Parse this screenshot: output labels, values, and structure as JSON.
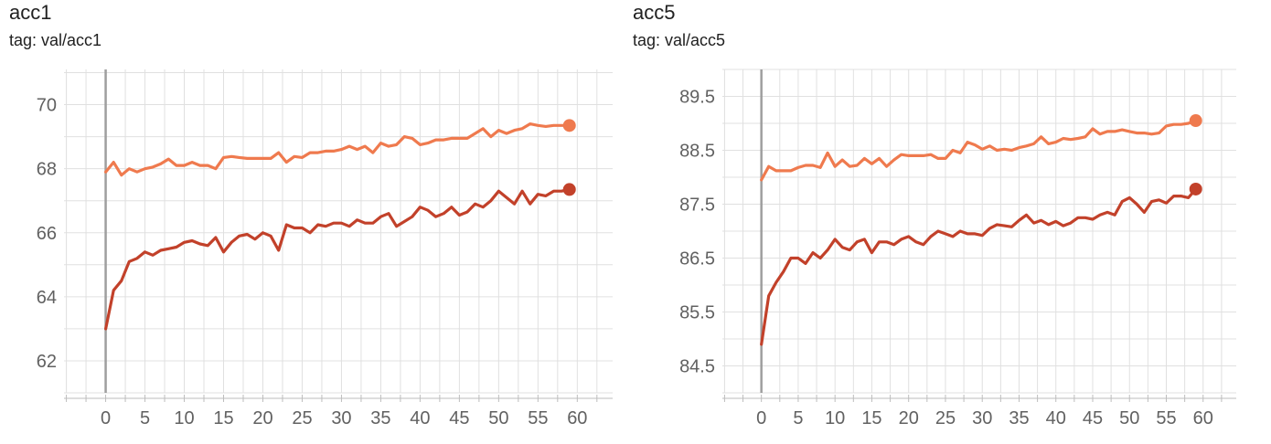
{
  "charts": [
    {
      "title": "acc1",
      "tag_prefix": "tag:",
      "tag_value": "val/acc1"
    },
    {
      "title": "acc5",
      "tag_prefix": "tag:",
      "tag_value": "val/acc5"
    }
  ],
  "chart_data": [
    {
      "type": "line",
      "title": "acc1",
      "xlabel": "",
      "ylabel": "",
      "xlim": [
        -5.3,
        64.5
      ],
      "ylim": [
        61.0,
        71.1
      ],
      "xticks": [
        0,
        5,
        10,
        15,
        20,
        25,
        30,
        35,
        40,
        45,
        50,
        55,
        60
      ],
      "yticks": [
        62,
        64,
        66,
        68,
        70
      ],
      "ytick_labels": [
        "62",
        "64",
        "66",
        "68",
        "70"
      ],
      "grid": true,
      "colors": {
        "grid": "#e0e0e0",
        "axis": "#9e9e9e",
        "zero_line": "#9e9e9e"
      },
      "series": [
        {
          "color": "#ef7a4e",
          "x": [
            0,
            1,
            2,
            3,
            4,
            5,
            6,
            7,
            8,
            9,
            10,
            11,
            12,
            13,
            14,
            15,
            16,
            17,
            18,
            19,
            20,
            21,
            22,
            23,
            24,
            25,
            26,
            27,
            28,
            29,
            30,
            31,
            32,
            33,
            34,
            35,
            36,
            37,
            38,
            39,
            40,
            41,
            42,
            43,
            44,
            45,
            46,
            47,
            48,
            49,
            50,
            51,
            52,
            53,
            54,
            55,
            56,
            57,
            58,
            59
          ],
          "y": [
            67.9,
            68.2,
            67.8,
            68.0,
            67.9,
            68.0,
            68.05,
            68.15,
            68.3,
            68.1,
            68.1,
            68.2,
            68.1,
            68.1,
            68.0,
            68.35,
            68.38,
            68.35,
            68.32,
            68.32,
            68.32,
            68.32,
            68.5,
            68.2,
            68.38,
            68.35,
            68.5,
            68.5,
            68.55,
            68.55,
            68.6,
            68.7,
            68.6,
            68.7,
            68.5,
            68.8,
            68.7,
            68.75,
            69.0,
            68.95,
            68.75,
            68.8,
            68.9,
            68.9,
            68.95,
            68.95,
            68.95,
            69.1,
            69.25,
            69.0,
            69.2,
            69.1,
            69.2,
            69.25,
            69.4,
            69.35,
            69.32,
            69.35,
            69.35,
            69.35
          ]
        },
        {
          "color": "#c2412a",
          "x": [
            0,
            1,
            2,
            3,
            4,
            5,
            6,
            7,
            8,
            9,
            10,
            11,
            12,
            13,
            14,
            15,
            16,
            17,
            18,
            19,
            20,
            21,
            22,
            23,
            24,
            25,
            26,
            27,
            28,
            29,
            30,
            31,
            32,
            33,
            34,
            35,
            36,
            37,
            38,
            39,
            40,
            41,
            42,
            43,
            44,
            45,
            46,
            47,
            48,
            49,
            50,
            51,
            52,
            53,
            54,
            55,
            56,
            57,
            58,
            59
          ],
          "y": [
            63.0,
            64.2,
            64.5,
            65.1,
            65.2,
            65.4,
            65.3,
            65.45,
            65.5,
            65.55,
            65.7,
            65.75,
            65.65,
            65.6,
            65.85,
            65.4,
            65.7,
            65.9,
            65.95,
            65.8,
            66.0,
            65.9,
            65.45,
            66.25,
            66.15,
            66.15,
            66.0,
            66.25,
            66.2,
            66.3,
            66.3,
            66.2,
            66.4,
            66.3,
            66.3,
            66.5,
            66.6,
            66.2,
            66.35,
            66.5,
            66.8,
            66.7,
            66.5,
            66.6,
            66.8,
            66.55,
            66.65,
            66.9,
            66.8,
            67.0,
            67.3,
            67.1,
            66.9,
            67.3,
            66.9,
            67.2,
            67.15,
            67.3,
            67.3,
            67.35
          ]
        }
      ]
    },
    {
      "type": "line",
      "title": "acc5",
      "xlabel": "",
      "ylabel": "",
      "xlim": [
        -5.3,
        64.5
      ],
      "ylim": [
        84.0,
        90.0
      ],
      "xticks": [
        0,
        5,
        10,
        15,
        20,
        25,
        30,
        35,
        40,
        45,
        50,
        55,
        60
      ],
      "yticks": [
        84.5,
        85.5,
        86.5,
        87.5,
        88.5,
        89.5
      ],
      "ytick_labels": [
        "84.5",
        "85.5",
        "86.5",
        "87.5",
        "88.5",
        "89.5"
      ],
      "grid": true,
      "colors": {
        "grid": "#e0e0e0",
        "axis": "#9e9e9e",
        "zero_line": "#9e9e9e"
      },
      "series": [
        {
          "color": "#ef7a4e",
          "x": [
            0,
            1,
            2,
            3,
            4,
            5,
            6,
            7,
            8,
            9,
            10,
            11,
            12,
            13,
            14,
            15,
            16,
            17,
            18,
            19,
            20,
            21,
            22,
            23,
            24,
            25,
            26,
            27,
            28,
            29,
            30,
            31,
            32,
            33,
            34,
            35,
            36,
            37,
            38,
            39,
            40,
            41,
            42,
            43,
            44,
            45,
            46,
            47,
            48,
            49,
            50,
            51,
            52,
            53,
            54,
            55,
            56,
            57,
            58,
            59
          ],
          "y": [
            87.95,
            88.2,
            88.12,
            88.12,
            88.12,
            88.18,
            88.22,
            88.22,
            88.18,
            88.45,
            88.2,
            88.32,
            88.2,
            88.22,
            88.35,
            88.25,
            88.35,
            88.2,
            88.32,
            88.42,
            88.4,
            88.4,
            88.4,
            88.42,
            88.35,
            88.35,
            88.5,
            88.45,
            88.65,
            88.6,
            88.52,
            88.58,
            88.5,
            88.52,
            88.5,
            88.55,
            88.58,
            88.62,
            88.75,
            88.62,
            88.65,
            88.72,
            88.7,
            88.72,
            88.75,
            88.9,
            88.8,
            88.85,
            88.85,
            88.88,
            88.85,
            88.82,
            88.82,
            88.8,
            88.82,
            88.95,
            88.98,
            88.98,
            89.0,
            89.05
          ]
        },
        {
          "color": "#c2412a",
          "x": [
            0,
            1,
            2,
            3,
            4,
            5,
            6,
            7,
            8,
            9,
            10,
            11,
            12,
            13,
            14,
            15,
            16,
            17,
            18,
            19,
            20,
            21,
            22,
            23,
            24,
            25,
            26,
            27,
            28,
            29,
            30,
            31,
            32,
            33,
            34,
            35,
            36,
            37,
            38,
            39,
            40,
            41,
            42,
            43,
            44,
            45,
            46,
            47,
            48,
            49,
            50,
            51,
            52,
            53,
            54,
            55,
            56,
            57,
            58,
            59
          ],
          "y": [
            84.9,
            85.8,
            86.05,
            86.25,
            86.5,
            86.5,
            86.4,
            86.6,
            86.5,
            86.65,
            86.85,
            86.7,
            86.65,
            86.8,
            86.85,
            86.6,
            86.8,
            86.8,
            86.75,
            86.85,
            86.9,
            86.8,
            86.75,
            86.9,
            87.0,
            86.95,
            86.9,
            87.0,
            86.95,
            86.95,
            86.92,
            87.05,
            87.12,
            87.1,
            87.08,
            87.2,
            87.3,
            87.15,
            87.2,
            87.12,
            87.18,
            87.1,
            87.15,
            87.25,
            87.25,
            87.22,
            87.3,
            87.35,
            87.3,
            87.55,
            87.62,
            87.5,
            87.35,
            87.55,
            87.58,
            87.52,
            87.65,
            87.65,
            87.62,
            87.78
          ]
        }
      ]
    }
  ]
}
